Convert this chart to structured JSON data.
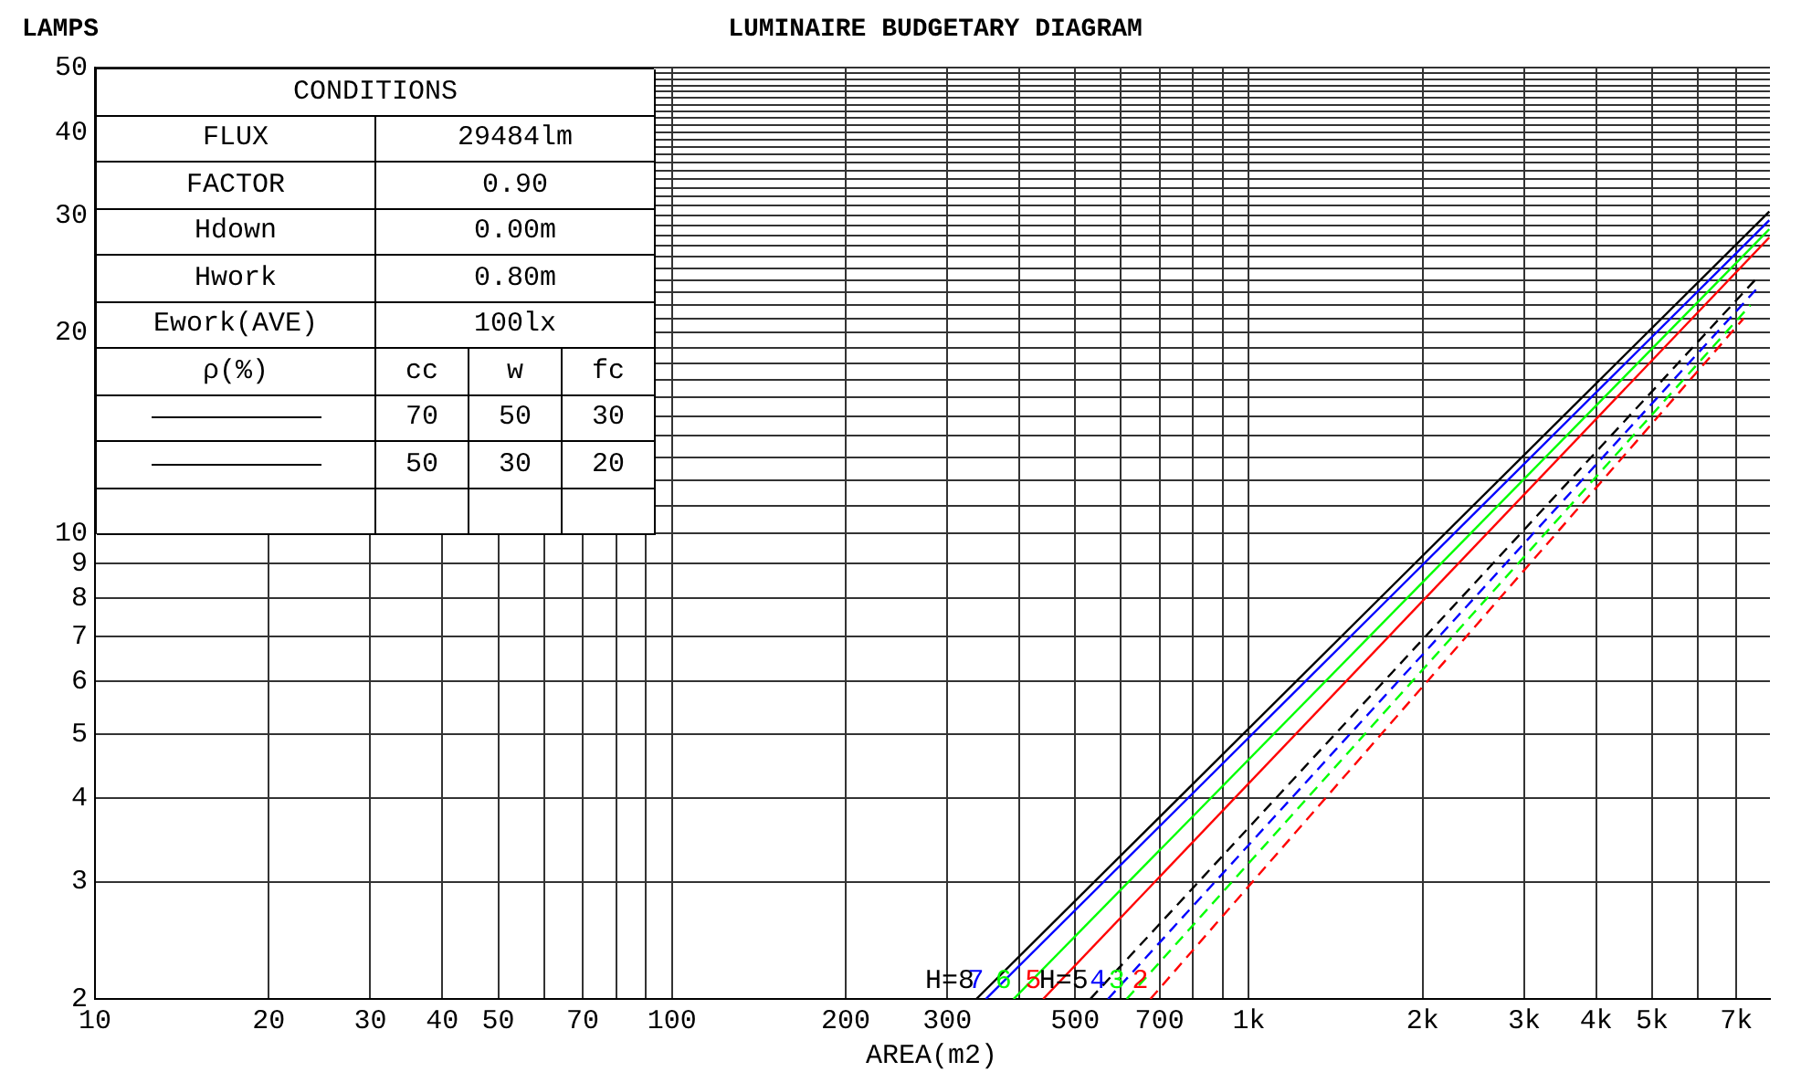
{
  "chart_data": {
    "type": "line",
    "title": "LUMINAIRE BUDGETARY DIAGRAM",
    "ylabel": "LAMPS",
    "xlabel": "AREA(m2)",
    "log": "xy",
    "grid": true,
    "marker": "none",
    "line_style": "solid",
    "xlim": [
      10,
      8000
    ],
    "ylim": [
      2,
      50
    ],
    "xticks": [
      10,
      20,
      30,
      40,
      50,
      {
        "value": 60,
        "label": null
      },
      70,
      {
        "value": 80,
        "label": null
      },
      {
        "value": 90,
        "label": null
      },
      100,
      200,
      300,
      {
        "value": 400,
        "label": null
      },
      500,
      {
        "value": 600,
        "label": null
      },
      700,
      {
        "value": 800,
        "label": null
      },
      {
        "value": 900,
        "label": null
      },
      {
        "value": 1000,
        "label": "1k"
      },
      {
        "value": 2000,
        "label": "2k"
      },
      {
        "value": 3000,
        "label": "3k"
      },
      {
        "value": 4000,
        "label": "4k"
      },
      {
        "value": 5000,
        "label": "5k"
      },
      {
        "value": 6000,
        "label": null
      },
      {
        "value": 7000,
        "label": "7k"
      }
    ],
    "yticks": [
      2,
      3,
      4,
      5,
      6,
      7,
      8,
      9,
      10,
      {
        "value": 11,
        "label": null
      },
      {
        "value": 12,
        "label": null
      },
      {
        "value": 13,
        "label": null
      },
      {
        "value": 14,
        "label": null
      },
      {
        "value": 15,
        "label": null
      },
      {
        "value": 16,
        "label": null
      },
      {
        "value": 17,
        "label": null
      },
      {
        "value": 18,
        "label": null
      },
      {
        "value": 19,
        "label": null
      },
      20,
      {
        "value": 21,
        "label": null
      },
      {
        "value": 22,
        "label": null
      },
      {
        "value": 23,
        "label": null
      },
      {
        "value": 24,
        "label": null
      },
      {
        "value": 25,
        "label": null
      },
      {
        "value": 26,
        "label": null
      },
      {
        "value": 27,
        "label": null
      },
      {
        "value": 28,
        "label": null
      },
      {
        "value": 29,
        "label": null
      },
      30,
      {
        "value": 31,
        "label": null
      },
      {
        "value": 32,
        "label": null
      },
      {
        "value": 33,
        "label": null
      },
      {
        "value": 34,
        "label": null
      },
      {
        "value": 35,
        "label": null
      },
      {
        "value": 36,
        "label": null
      },
      {
        "value": 37,
        "label": null
      },
      {
        "value": 38,
        "label": null
      },
      {
        "value": 39,
        "label": null
      },
      40,
      {
        "value": 41,
        "label": null
      },
      {
        "value": 42,
        "label": null
      },
      {
        "value": 43,
        "label": null
      },
      {
        "value": 44,
        "label": null
      },
      {
        "value": 45,
        "label": null
      },
      {
        "value": 46,
        "label": null
      },
      {
        "value": 47,
        "label": null
      },
      {
        "value": 48,
        "label": null
      },
      {
        "value": 49,
        "label": null
      },
      50
    ],
    "annotations": [
      "CONDITIONS",
      "FLUX",
      "29484lm",
      "FACTOR",
      "0.90",
      "Hdown",
      "0.00m",
      "Hwork",
      "0.80m",
      "Ework(AVE)",
      "100lx",
      "ρ(%)",
      "cc",
      "w",
      "fc",
      "70",
      "50",
      "30",
      "50",
      "30",
      "20"
    ],
    "series": [
      {
        "name": "H=8",
        "color": "#000000",
        "x": [
          337,
          7980
        ],
        "values": [
          2,
          30.4
        ]
      },
      {
        "name": "7",
        "color": "#0000ff",
        "x": [
          350,
          7980
        ],
        "values": [
          2,
          29.5
        ]
      },
      {
        "name": "6",
        "color": "#00ff00",
        "x": [
          391,
          7980
        ],
        "values": [
          2,
          28.6
        ]
      },
      {
        "name": "5",
        "color": "#ff0000",
        "x": [
          440,
          7980
        ],
        "values": [
          2,
          27.8
        ]
      },
      {
        "name": "H=5",
        "color": "#000000",
        "line_style": "dashed",
        "x": [
          531,
          7640
        ],
        "values": [
          2,
          24.3
        ]
      },
      {
        "name": "4",
        "color": "#0000ff",
        "line_style": "dashed",
        "x": [
          570,
          7700
        ],
        "values": [
          2,
          23.6
        ]
      },
      {
        "name": "3",
        "color": "#00ff00",
        "line_style": "dashed",
        "x": [
          614,
          7400
        ],
        "values": [
          2,
          22.0
        ]
      },
      {
        "name": "2",
        "color": "#ff0000",
        "line_style": "dashed",
        "x": [
          675,
          7200
        ],
        "values": [
          2,
          21.0
        ]
      }
    ]
  }
}
